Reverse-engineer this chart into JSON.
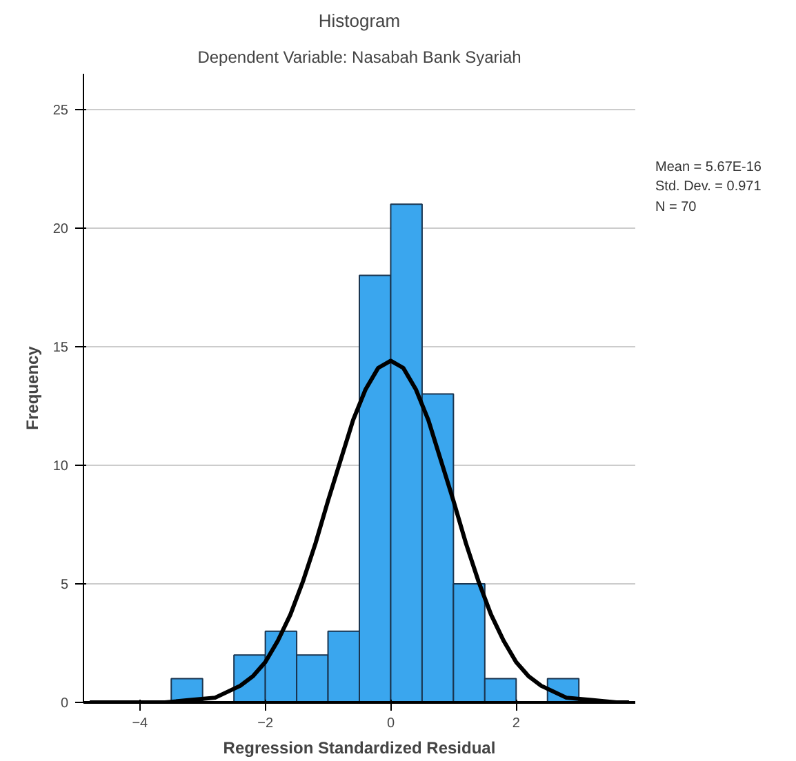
{
  "chart_data": {
    "type": "histogram",
    "title": "Histogram",
    "subtitle": "Dependent Variable: Nasabah Bank Syariah",
    "xlabel": "Regression Standardized Residual",
    "ylabel": "Frequency",
    "bins": [
      -3.5,
      -3.0,
      -2.5,
      -2.0,
      -1.5,
      -1.0,
      -0.5,
      0.0,
      0.5,
      1.0,
      1.5,
      2.0,
      2.5,
      3.0
    ],
    "values": [
      1,
      0,
      2,
      3,
      2,
      3,
      18,
      21,
      13,
      5,
      1,
      0,
      1
    ],
    "color": "#3aa6ee",
    "series": [
      {
        "type": "line",
        "color": "#000000",
        "x": [
          -4.8,
          -4.4,
          -4.0,
          -3.6,
          -3.2,
          -2.8,
          -2.4,
          -2.2,
          -2.0,
          -1.8,
          -1.6,
          -1.4,
          -1.2,
          -1.0,
          -0.8,
          -0.6,
          -0.4,
          -0.2,
          0.0,
          0.2,
          0.4,
          0.6,
          0.8,
          1.0,
          1.2,
          1.4,
          1.6,
          1.8,
          2.0,
          2.2,
          2.4,
          2.8,
          3.2,
          3.6,
          3.8
        ],
        "values": [
          0,
          0,
          0,
          0,
          0.1,
          0.2,
          0.7,
          1.1,
          1.7,
          2.6,
          3.7,
          5.1,
          6.7,
          8.5,
          10.2,
          11.9,
          13.2,
          14.1,
          14.4,
          14.1,
          13.2,
          11.9,
          10.2,
          8.5,
          6.7,
          5.1,
          3.7,
          2.6,
          1.7,
          1.1,
          0.7,
          0.2,
          0.1,
          0,
          0
        ]
      }
    ],
    "xlim": [
      -4.9,
      3.9
    ],
    "ylim": [
      0,
      26.5
    ],
    "xticks": [
      -4,
      -2,
      0,
      2
    ],
    "yticks": [
      0,
      5,
      10,
      15,
      20,
      25
    ],
    "grid": "y",
    "annotations": [
      "Mean = 5.67E-16",
      "Std. Dev. = 0.971",
      "N = 70"
    ]
  }
}
